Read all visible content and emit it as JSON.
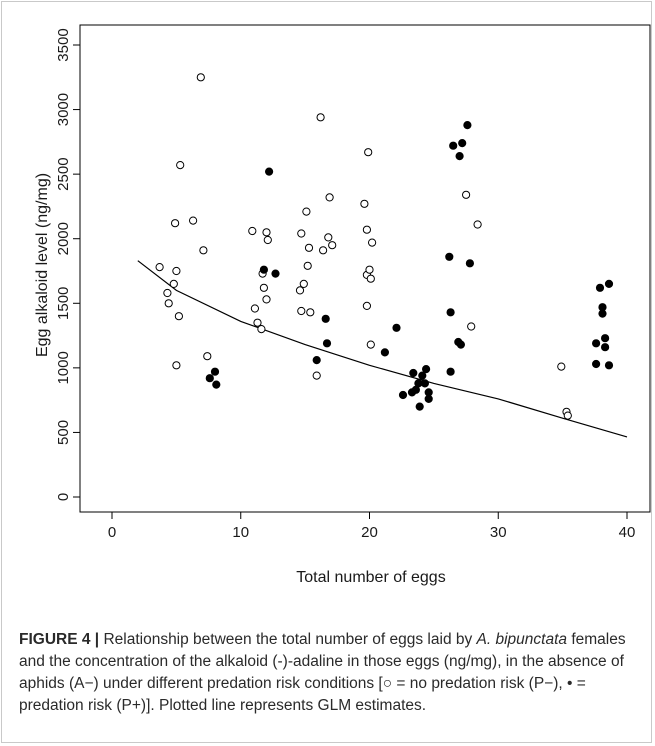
{
  "chart_data": {
    "type": "scatter",
    "title": "",
    "xlabel": "Total number of eggs",
    "ylabel": "Egg alkaloid level (ng/mg)",
    "xlim": [
      0,
      40
    ],
    "ylim": [
      0,
      3500
    ],
    "x_ticks": [
      "0",
      "10",
      "20",
      "30",
      "40"
    ],
    "y_ticks": [
      "0",
      "500",
      "1000",
      "1500",
      "2000",
      "2500",
      "3000",
      "3500"
    ],
    "grid": false,
    "legend": "none",
    "series": [
      {
        "marker": "open-circle",
        "color": "#000000",
        "points": [
          [
            3.7,
            1780
          ],
          [
            4.3,
            1580
          ],
          [
            4.4,
            1500
          ],
          [
            4.8,
            1650
          ],
          [
            5.0,
            1750
          ],
          [
            4.9,
            2120
          ],
          [
            5.2,
            1400
          ],
          [
            5.0,
            1020
          ],
          [
            5.3,
            2570
          ],
          [
            6.3,
            2140
          ],
          [
            6.9,
            3250
          ],
          [
            7.1,
            1910
          ],
          [
            7.4,
            1090
          ],
          [
            10.9,
            2060
          ],
          [
            11.1,
            1460
          ],
          [
            11.3,
            1350
          ],
          [
            11.6,
            1300
          ],
          [
            11.7,
            1730
          ],
          [
            11.8,
            1620
          ],
          [
            12.0,
            1530
          ],
          [
            12.0,
            2050
          ],
          [
            12.1,
            1990
          ],
          [
            14.6,
            1600
          ],
          [
            14.7,
            2040
          ],
          [
            14.7,
            1440
          ],
          [
            14.9,
            1650
          ],
          [
            15.1,
            2210
          ],
          [
            15.2,
            1790
          ],
          [
            15.3,
            1930
          ],
          [
            15.4,
            1430
          ],
          [
            15.9,
            940
          ],
          [
            16.2,
            2940
          ],
          [
            16.4,
            1910
          ],
          [
            16.8,
            2010
          ],
          [
            16.9,
            2320
          ],
          [
            17.1,
            1950
          ],
          [
            19.6,
            2270
          ],
          [
            19.8,
            2070
          ],
          [
            19.8,
            1720
          ],
          [
            19.8,
            1480
          ],
          [
            20.0,
            1760
          ],
          [
            19.9,
            2670
          ],
          [
            20.1,
            1690
          ],
          [
            20.2,
            1970
          ],
          [
            20.1,
            1180
          ],
          [
            27.5,
            2340
          ],
          [
            27.9,
            1320
          ],
          [
            28.4,
            2110
          ],
          [
            34.9,
            1010
          ],
          [
            35.3,
            660
          ],
          [
            35.4,
            630
          ]
        ]
      },
      {
        "marker": "filled-circle",
        "color": "#000000",
        "points": [
          [
            7.6,
            920
          ],
          [
            8.0,
            970
          ],
          [
            8.1,
            870
          ],
          [
            11.8,
            1760
          ],
          [
            12.2,
            2520
          ],
          [
            12.7,
            1730
          ],
          [
            15.9,
            1060
          ],
          [
            16.6,
            1380
          ],
          [
            16.7,
            1190
          ],
          [
            21.2,
            1120
          ],
          [
            22.1,
            1310
          ],
          [
            22.6,
            790
          ],
          [
            23.3,
            810
          ],
          [
            23.4,
            960
          ],
          [
            23.6,
            830
          ],
          [
            23.8,
            880
          ],
          [
            23.9,
            700
          ],
          [
            24.1,
            940
          ],
          [
            24.3,
            880
          ],
          [
            24.4,
            990
          ],
          [
            24.6,
            810
          ],
          [
            24.6,
            760
          ],
          [
            26.2,
            1860
          ],
          [
            26.3,
            1430
          ],
          [
            26.3,
            970
          ],
          [
            26.5,
            2720
          ],
          [
            26.9,
            1200
          ],
          [
            27.0,
            2640
          ],
          [
            27.1,
            1180
          ],
          [
            27.2,
            2740
          ],
          [
            27.6,
            2880
          ],
          [
            27.8,
            1810
          ],
          [
            37.6,
            1190
          ],
          [
            37.6,
            1030
          ],
          [
            37.9,
            1620
          ],
          [
            38.1,
            1470
          ],
          [
            38.1,
            1420
          ],
          [
            38.3,
            1230
          ],
          [
            38.3,
            1160
          ],
          [
            38.6,
            1650
          ],
          [
            38.6,
            1020
          ]
        ]
      }
    ],
    "fit_line": {
      "type": "GLM estimate",
      "x": [
        2,
        5,
        10,
        15,
        20,
        25,
        30,
        35,
        40
      ],
      "y": [
        1830,
        1600,
        1360,
        1180,
        1020,
        880,
        760,
        610,
        465
      ]
    }
  },
  "caption": {
    "label": "FIGURE 4 |",
    "text_1": " Relationship between the total number of eggs laid by ",
    "species": "A. bipunctata",
    "text_2": " females and the concentration of the alkaloid (-)-adaline in those eggs (ng/mg), in the absence of aphids (A−) under different predation risk conditions [○ = no predation risk (P−), • = predation risk (P+)]. Plotted line represents GLM estimates."
  }
}
